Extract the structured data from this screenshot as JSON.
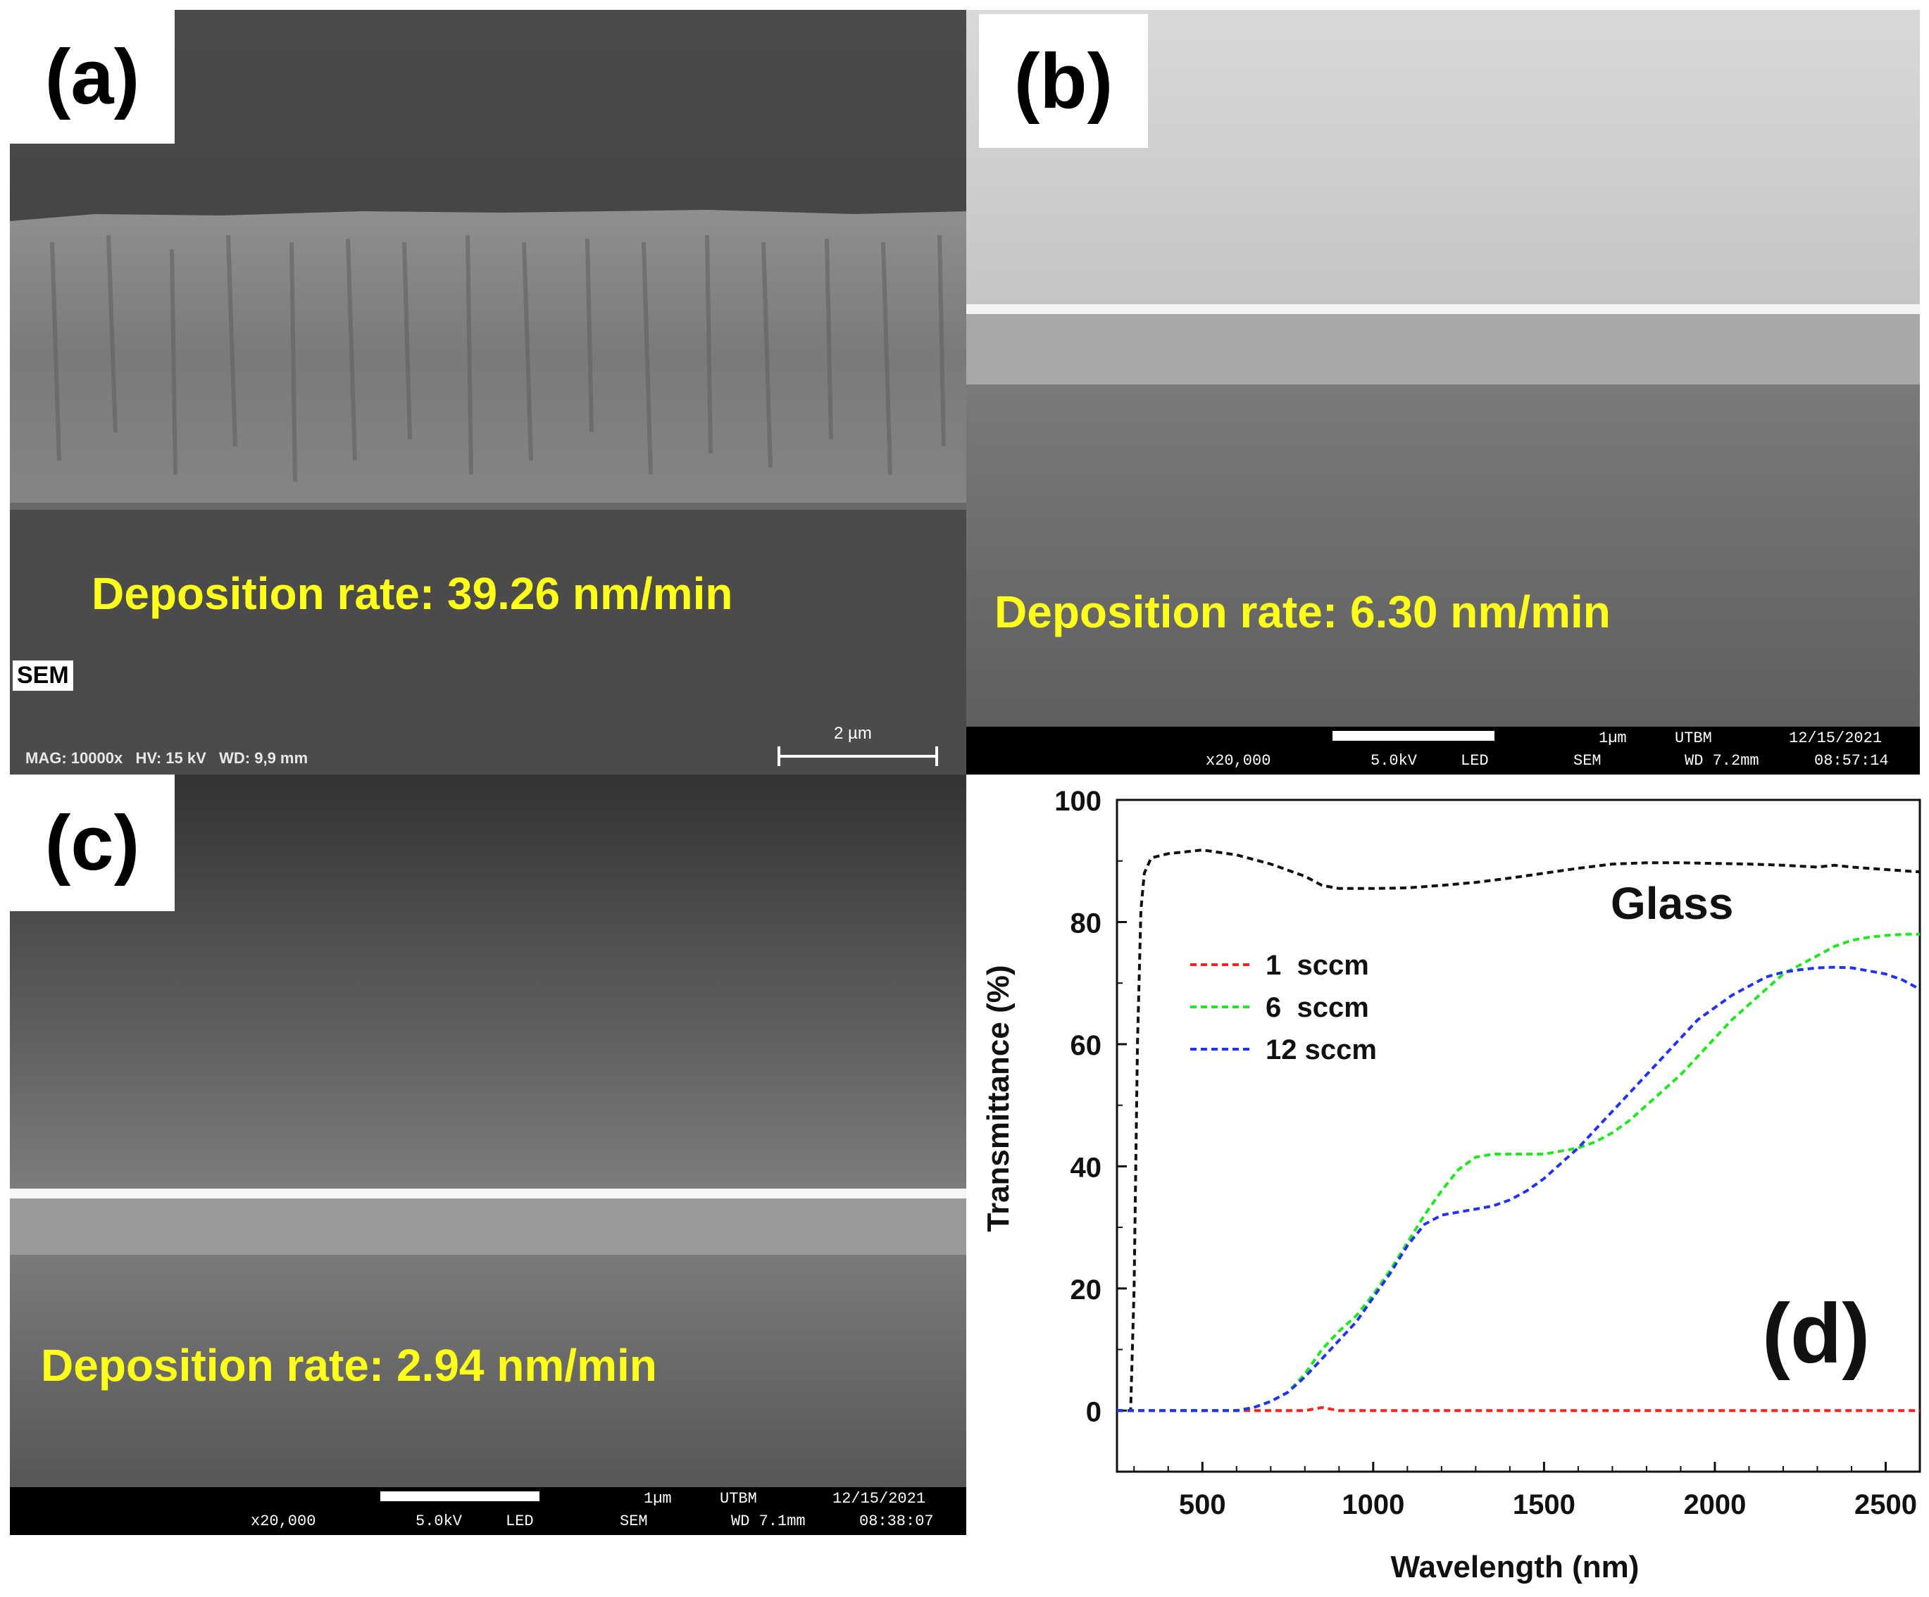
{
  "panels": {
    "a": {
      "label": "(a)",
      "rate_text": "Deposition rate: 39.26 nm/min",
      "sem_tag": "SEM",
      "info": "MAG: 10000x   HV: 15 kV   WD: 9,9 mm",
      "scale_label": "2 µm"
    },
    "b": {
      "label": "(b)",
      "rate_text": "Deposition rate: 6.30 nm/min",
      "scale_label": "1µm",
      "lab": "UTBM",
      "date": "12/15/2021",
      "mag": "x20,000",
      "kv": "5.0kV",
      "det": "LED",
      "mode": "SEM",
      "wd": "WD 7.2mm",
      "time": "08:57:14"
    },
    "c": {
      "label": "(c)",
      "rate_text": "Deposition rate: 2.94 nm/min",
      "scale_label": "1µm",
      "lab": "UTBM",
      "date": "12/15/2021",
      "mag": "x20,000",
      "kv": "5.0kV",
      "det": "LED",
      "mode": "SEM",
      "wd": "WD 7.1mm",
      "time": "08:38:07"
    },
    "d": {
      "label": "(d)",
      "substrate": "Glass"
    }
  },
  "colors": {
    "rate_text": "#ffff1a",
    "glass": "#111111",
    "s1": "#ff2020",
    "s6": "#22e622",
    "s12": "#2233ee"
  },
  "chart_data": {
    "type": "line",
    "title": "",
    "xlabel": "Wavelength (nm)",
    "ylabel": "Transmittance (%)",
    "xlim": [
      250,
      2600
    ],
    "ylim": [
      -10,
      100
    ],
    "xticks": [
      500,
      1000,
      1500,
      2000,
      2500
    ],
    "yticks": [
      0,
      20,
      40,
      60,
      80,
      100
    ],
    "legend_position": "top-left",
    "series": [
      {
        "name": "Glass",
        "in_legend": false,
        "x": [
          250,
          290,
          300,
          310,
          320,
          330,
          350,
          400,
          500,
          600,
          700,
          800,
          850,
          900,
          1000,
          1100,
          1200,
          1300,
          1400,
          1500,
          1600,
          1700,
          1800,
          1900,
          2000,
          2100,
          2200,
          2300,
          2350,
          2400,
          2500,
          2600
        ],
        "y": [
          0,
          0,
          20,
          60,
          82,
          88,
          90.5,
          91.2,
          91.8,
          91,
          89.5,
          87.5,
          86,
          85.5,
          85.5,
          85.6,
          86,
          86.5,
          87.2,
          88,
          88.8,
          89.5,
          89.7,
          89.7,
          89.6,
          89.5,
          89.3,
          89.0,
          89.3,
          89.0,
          88.6,
          88.2
        ]
      },
      {
        "name": "1  sccm",
        "in_legend": true,
        "x": [
          250,
          400,
          600,
          800,
          850,
          900,
          1000,
          1200,
          1400,
          1600,
          1800,
          2000,
          2200,
          2400,
          2600
        ],
        "y": [
          0,
          0,
          0,
          0,
          0.5,
          0,
          0,
          0,
          0,
          0,
          0,
          0,
          0,
          0,
          0
        ]
      },
      {
        "name": "6  sccm",
        "in_legend": true,
        "x": [
          250,
          400,
          600,
          650,
          700,
          750,
          800,
          850,
          900,
          950,
          1000,
          1050,
          1100,
          1150,
          1200,
          1250,
          1300,
          1350,
          1400,
          1450,
          1500,
          1550,
          1600,
          1650,
          1700,
          1750,
          1800,
          1850,
          1900,
          1950,
          2000,
          2050,
          2100,
          2150,
          2200,
          2250,
          2300,
          2350,
          2400,
          2450,
          2500,
          2550,
          2600
        ],
        "y": [
          0,
          0,
          0,
          0.5,
          1.5,
          3,
          6,
          10,
          13,
          15.5,
          19,
          23,
          27.5,
          32,
          36,
          39.5,
          41.5,
          42,
          42,
          42,
          42,
          42.5,
          43,
          44,
          45.5,
          47.5,
          50,
          52.5,
          55,
          58,
          61,
          64,
          66.5,
          69,
          71.5,
          73,
          74.5,
          76,
          77,
          77.5,
          77.8,
          78,
          78
        ]
      },
      {
        "name": "12 sccm",
        "in_legend": true,
        "x": [
          250,
          400,
          600,
          650,
          700,
          750,
          800,
          850,
          900,
          950,
          1000,
          1050,
          1100,
          1150,
          1200,
          1250,
          1300,
          1350,
          1400,
          1450,
          1500,
          1550,
          1600,
          1650,
          1700,
          1750,
          1800,
          1850,
          1900,
          1950,
          2000,
          2050,
          2100,
          2150,
          2200,
          2250,
          2300,
          2350,
          2400,
          2450,
          2500,
          2550,
          2600
        ],
        "y": [
          0,
          0,
          0,
          0.5,
          1.5,
          3,
          5.5,
          8.5,
          11.5,
          14.5,
          18.5,
          22.5,
          27,
          30.5,
          32,
          32.5,
          33,
          33.5,
          34.5,
          36,
          38,
          40.5,
          43,
          46,
          49,
          52,
          55,
          58,
          61,
          64,
          66,
          68,
          69.5,
          71,
          71.8,
          72.2,
          72.5,
          72.6,
          72.5,
          72,
          71.5,
          70.5,
          69
        ]
      }
    ]
  }
}
